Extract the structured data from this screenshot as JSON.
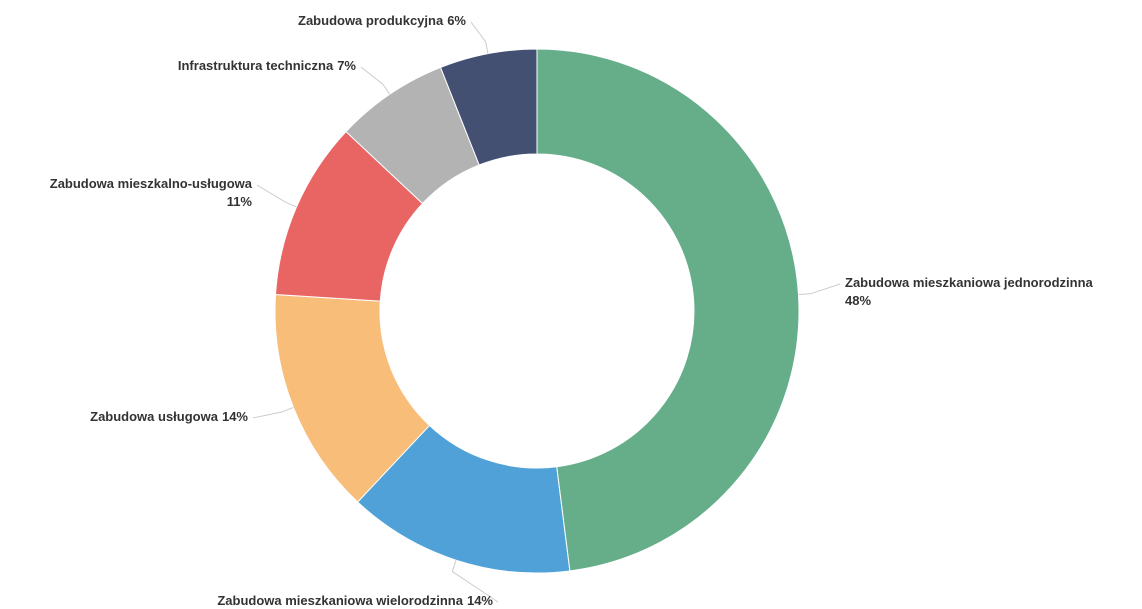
{
  "chart_data": {
    "type": "donut",
    "categories": [
      "Zabudowa mieszkaniowa jednorodzinna",
      "Zabudowa mieszkaniowa wielorodzinna",
      "Zabudowa usługowa",
      "Zabudowa mieszkalno-usługowa",
      "Infrastruktura techniczna",
      "Zabudowa produkcyjna"
    ],
    "values": [
      48,
      14,
      14,
      11,
      7,
      6
    ],
    "value_labels": [
      "48%",
      "14%",
      "14%",
      "11%",
      "7%",
      "6%"
    ],
    "colors": [
      "#66ae8a",
      "#4fa1d8",
      "#f8be79",
      "#e86563",
      "#b3b3b3",
      "#435072"
    ]
  }
}
